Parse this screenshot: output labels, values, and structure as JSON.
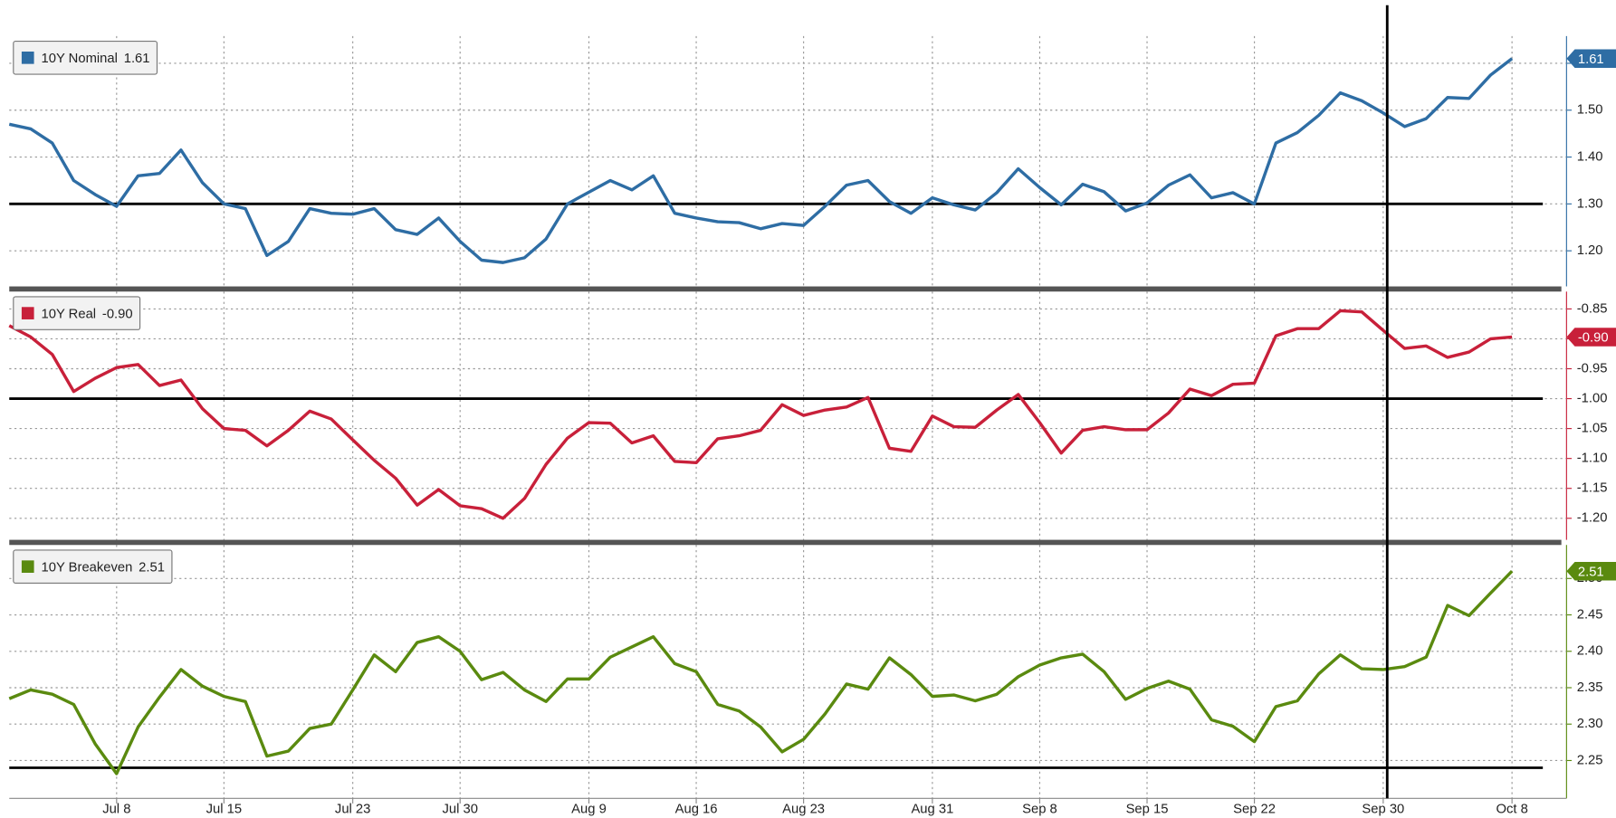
{
  "chart_data": [
    {
      "type": "line",
      "series": [
        {
          "name": "10Y Nominal",
          "last_label": "1.61",
          "color": "#2e6da4",
          "values": [
            1.47,
            1.46,
            1.43,
            1.35,
            1.32,
            1.295,
            1.36,
            1.365,
            1.415,
            1.345,
            1.3,
            1.29,
            1.19,
            1.22,
            1.29,
            1.28,
            1.278,
            1.29,
            1.245,
            1.235,
            1.27,
            1.22,
            1.18,
            1.175,
            1.185,
            1.225,
            1.3,
            1.325,
            1.35,
            1.33,
            1.36,
            1.28,
            1.27,
            1.262,
            1.26,
            1.247,
            1.258,
            1.254,
            1.295,
            1.34,
            1.35,
            1.305,
            1.28,
            1.313,
            1.298,
            1.287,
            1.324,
            1.375,
            1.335,
            1.298,
            1.342,
            1.326,
            1.285,
            1.302,
            1.34,
            1.362,
            1.313,
            1.324,
            1.3,
            1.43,
            1.452,
            1.489,
            1.537,
            1.52,
            1.494,
            1.465,
            1.482,
            1.527,
            1.525,
            1.575,
            1.61
          ]
        }
      ],
      "ylim": [
        1.124,
        1.658
      ],
      "yticks": [
        {
          "value": 1.2,
          "label": "1.20"
        },
        {
          "value": 1.3,
          "label": "1.30"
        },
        {
          "value": 1.4,
          "label": "1.40"
        },
        {
          "value": 1.5,
          "label": "1.50"
        },
        {
          "value": 1.6,
          "label": "1.60"
        }
      ],
      "reference": 1.3,
      "grid": true
    },
    {
      "type": "line",
      "series": [
        {
          "name": "10Y Real",
          "last_label": "-0.90",
          "color": "#c8203a",
          "values": [
            -0.878,
            -0.897,
            -0.926,
            -0.988,
            -0.966,
            -0.948,
            -0.943,
            -0.978,
            -0.969,
            -1.017,
            -1.05,
            -1.053,
            -1.079,
            -1.053,
            -1.021,
            -1.034,
            -1.069,
            -1.103,
            -1.133,
            -1.178,
            -1.152,
            -1.179,
            -1.184,
            -1.2,
            -1.167,
            -1.11,
            -1.066,
            -1.04,
            -1.041,
            -1.074,
            -1.062,
            -1.105,
            -1.107,
            -1.067,
            -1.062,
            -1.053,
            -1.01,
            -1.028,
            -1.019,
            -1.014,
            -0.998,
            -1.083,
            -1.088,
            -1.029,
            -1.047,
            -1.048,
            -1.019,
            -0.993,
            -1.04,
            -1.091,
            -1.053,
            -1.047,
            -1.052,
            -1.052,
            -1.024,
            -0.984,
            -0.995,
            -0.976,
            -0.974,
            -0.895,
            -0.883,
            -0.883,
            -0.853,
            -0.855,
            -0.886,
            -0.916,
            -0.912,
            -0.931,
            -0.922,
            -0.9,
            -0.897
          ]
        }
      ],
      "ylim": [
        -1.236,
        -0.821
      ],
      "yticks": [
        {
          "value": -1.2,
          "label": "-1.20"
        },
        {
          "value": -1.15,
          "label": "-1.15"
        },
        {
          "value": -1.1,
          "label": "-1.10"
        },
        {
          "value": -1.05,
          "label": "-1.05"
        },
        {
          "value": -1.0,
          "label": "-1.00"
        },
        {
          "value": -0.95,
          "label": "-0.95"
        },
        {
          "value": -0.9,
          "label": "-0.90"
        },
        {
          "value": -0.85,
          "label": "-0.85"
        }
      ],
      "reference": -1.0,
      "grid": true
    },
    {
      "type": "line",
      "series": [
        {
          "name": "10Y Breakeven",
          "last_label": "2.51",
          "color": "#5a8a0f",
          "values": [
            2.335,
            2.347,
            2.341,
            2.327,
            2.273,
            2.232,
            2.296,
            2.337,
            2.375,
            2.352,
            2.338,
            2.331,
            2.256,
            2.263,
            2.294,
            2.3,
            2.347,
            2.395,
            2.372,
            2.412,
            2.42,
            2.4,
            2.361,
            2.371,
            2.347,
            2.331,
            2.362,
            2.362,
            2.392,
            2.406,
            2.42,
            2.383,
            2.372,
            2.327,
            2.318,
            2.296,
            2.262,
            2.279,
            2.314,
            2.355,
            2.348,
            2.391,
            2.368,
            2.338,
            2.34,
            2.332,
            2.341,
            2.365,
            2.381,
            2.391,
            2.396,
            2.372,
            2.334,
            2.349,
            2.359,
            2.348,
            2.306,
            2.297,
            2.276,
            2.324,
            2.332,
            2.369,
            2.395,
            2.376,
            2.375,
            2.379,
            2.392,
            2.463,
            2.449,
            2.48,
            2.51
          ]
        }
      ],
      "ylim": [
        2.198,
        2.546
      ],
      "yticks": [
        {
          "value": 2.25,
          "label": "2.25"
        },
        {
          "value": 2.3,
          "label": "2.30"
        },
        {
          "value": 2.35,
          "label": "2.35"
        },
        {
          "value": 2.4,
          "label": "2.40"
        },
        {
          "value": 2.45,
          "label": "2.45"
        },
        {
          "value": 2.5,
          "label": "2.50"
        }
      ],
      "reference": 2.24,
      "grid": true,
      "categories": [
        null,
        null,
        null,
        null,
        null,
        "Jul 8",
        null,
        null,
        null,
        null,
        "Jul 15",
        null,
        null,
        null,
        null,
        null,
        "Jul 23",
        null,
        null,
        null,
        null,
        "Jul 30",
        null,
        null,
        null,
        null,
        null,
        "Aug 9",
        null,
        null,
        null,
        null,
        "Aug 16",
        null,
        null,
        null,
        null,
        "Aug 23",
        null,
        null,
        null,
        null,
        null,
        "Aug 31",
        null,
        null,
        null,
        null,
        "Sep 8",
        null,
        null,
        null,
        null,
        "Sep 15",
        null,
        null,
        null,
        null,
        "Sep 22",
        null,
        null,
        null,
        null,
        null,
        "Sep 30",
        null,
        null,
        null,
        null,
        null,
        "Oct 8"
      ]
    }
  ]
}
